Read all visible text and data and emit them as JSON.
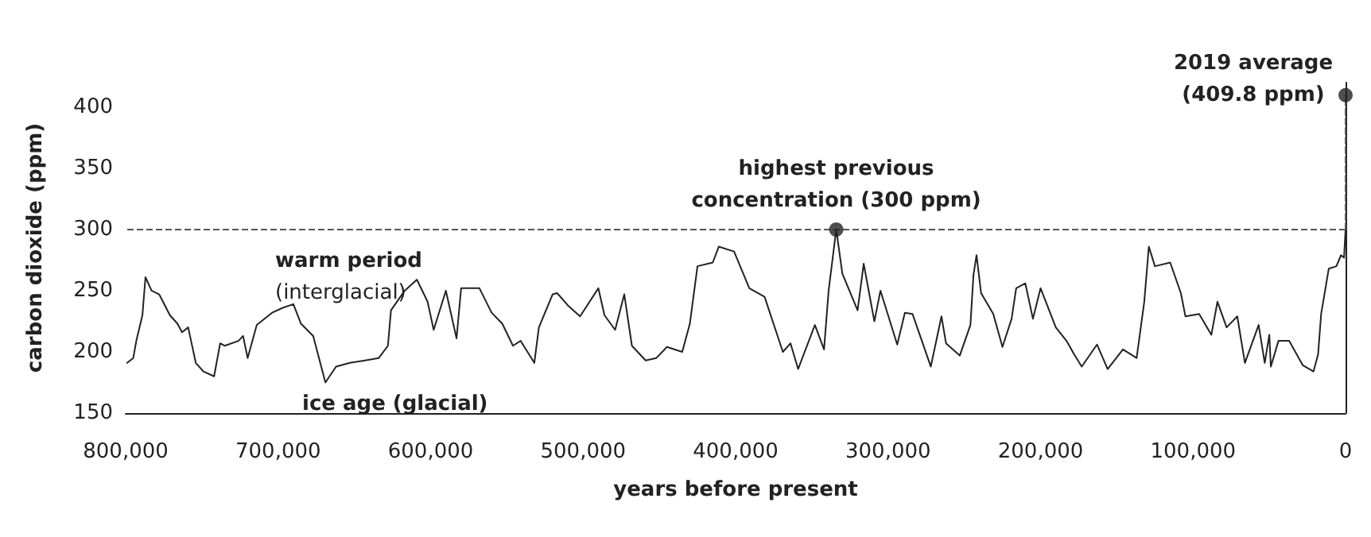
{
  "chart_data": {
    "type": "line",
    "xlabel": "years before present",
    "ylabel": "carbon dioxide (ppm)",
    "xlim": [
      800000,
      0
    ],
    "ylim": [
      150,
      420
    ],
    "xticks": [
      {
        "value": 800000,
        "label": "800,000"
      },
      {
        "value": 700000,
        "label": "700,000"
      },
      {
        "value": 600000,
        "label": "600,000"
      },
      {
        "value": 500000,
        "label": "500,000"
      },
      {
        "value": 400000,
        "label": "400,000"
      },
      {
        "value": 300000,
        "label": "300,000"
      },
      {
        "value": 200000,
        "label": "200,000"
      },
      {
        "value": 100000,
        "label": "100,000"
      },
      0
    ],
    "yticks": [
      150,
      200,
      250,
      300,
      350,
      400
    ],
    "grid": false,
    "ref_lines": [
      {
        "axis": "y",
        "value": 300,
        "color": "#555555",
        "line_style": "dashed"
      }
    ],
    "series": [
      {
        "color": "#222222",
        "marker": "none",
        "line_style": "solid",
        "x": [
          799000,
          795000,
          793000,
          789000,
          787000,
          783000,
          778000,
          771000,
          766000,
          763000,
          759000,
          754000,
          749000,
          742000,
          738000,
          735000,
          726000,
          723000,
          720000,
          714000,
          704000,
          697000,
          690000,
          685000,
          677000,
          669000,
          662000,
          653000,
          643000,
          634000,
          628000,
          626000,
          617000,
          609000,
          602000,
          598000,
          590000,
          583000,
          580000,
          568000,
          560000,
          553000,
          546000,
          541000,
          532000,
          529000,
          520000,
          517000,
          510000,
          502000,
          490000,
          486000,
          479000,
          473000,
          468000,
          459000,
          452000,
          445000,
          435000,
          430000,
          425000,
          415000,
          411000,
          401000,
          391000,
          381000,
          369000,
          364000,
          359000,
          348000,
          342000,
          339000,
          334000,
          330000,
          320000,
          316000,
          309000,
          305000,
          294000,
          289000,
          284000,
          272000,
          265000,
          262000,
          253000,
          246000,
          244000,
          242000,
          239000,
          231000,
          225000,
          219000,
          216000,
          210000,
          205000,
          200000,
          190000,
          183000,
          178000,
          173000,
          163000,
          156000,
          146000,
          137000,
          132000,
          129000,
          125000,
          115000,
          108000,
          105000,
          96000,
          88000,
          84000,
          78000,
          71000,
          66000,
          57000,
          53000,
          50000,
          49000,
          44000,
          37000,
          28000,
          21000,
          18000,
          16000,
          11000,
          6000,
          3000,
          1000,
          0
        ],
        "values": [
          191,
          195,
          209,
          230,
          261,
          250,
          247,
          230,
          223,
          216,
          220,
          191,
          184,
          180,
          207,
          205,
          209,
          213,
          195,
          222,
          232,
          236,
          239,
          223,
          213,
          175,
          188,
          191,
          193,
          195,
          205,
          234,
          250,
          259,
          241,
          218,
          250,
          211,
          252,
          252,
          232,
          223,
          205,
          209,
          191,
          220,
          247,
          248,
          238,
          229,
          252,
          230,
          218,
          247,
          205,
          193,
          195,
          204,
          200,
          223,
          270,
          273,
          286,
          282,
          252,
          245,
          200,
          207,
          186,
          222,
          202,
          250,
          300,
          264,
          234,
          272,
          225,
          250,
          206,
          232,
          231,
          188,
          229,
          207,
          197,
          222,
          263,
          279,
          248,
          231,
          204,
          227,
          252,
          256,
          227,
          252,
          220,
          209,
          198,
          188,
          206,
          186,
          202,
          195,
          241,
          286,
          270,
          273,
          248,
          229,
          231,
          214,
          241,
          220,
          229,
          191,
          222,
          191,
          214,
          188,
          209,
          209,
          189,
          184,
          198,
          231,
          268,
          270,
          279,
          277,
          300
        ]
      },
      {
        "type": "line",
        "color": "#555555",
        "marker": "none",
        "line_style": "dashed",
        "x": [
          0,
          0
        ],
        "values": [
          300,
          409.8
        ]
      },
      {
        "type": "scatter",
        "color": "#222222",
        "marker": "circle",
        "x": [
          334000,
          0
        ],
        "values": [
          300,
          409.8
        ]
      }
    ],
    "annotations": [
      {
        "text": "highest previous\nconcentration (300 ppm)",
        "x": 334000,
        "y": 300
      },
      {
        "text": "2019 average\n(409.8 ppm)",
        "x": 0,
        "y": 409.8
      },
      "warm period\n(interglacial)",
      "ice age (glacial)"
    ]
  }
}
